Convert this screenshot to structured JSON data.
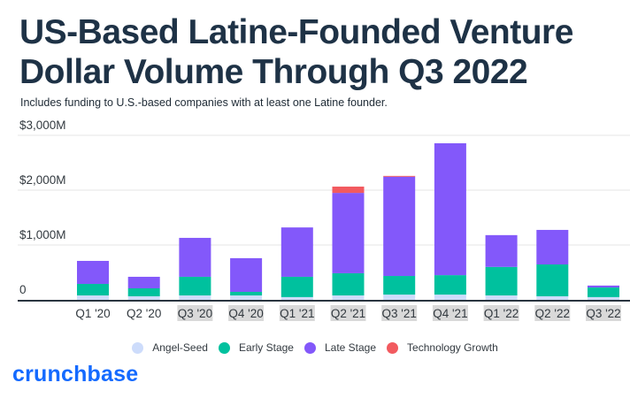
{
  "header": {
    "title": "US-Based Latine-Founded Venture Dollar Volume Through Q3 2022",
    "subtitle": "Includes funding to U.S.-based companies with at least one Latine founder."
  },
  "branding": {
    "logo_text": "crunchbase",
    "logo_color": "#146aff"
  },
  "chart_data": {
    "type": "bar",
    "stacked": true,
    "title": "US-Based Latine-Founded Venture Dollar Volume Through Q3 2022",
    "subtitle": "Includes funding to U.S.-based companies with at least one Latine founder.",
    "xlabel": "",
    "ylabel": "",
    "unit": "$M",
    "ylim": [
      0,
      3000
    ],
    "yticks": [
      0,
      1000,
      2000,
      3000
    ],
    "ytick_labels": [
      "0",
      "$1,000M",
      "$2,000M",
      "$3,000M"
    ],
    "grid": true,
    "legend_position": "bottom",
    "categories": [
      "Q1 '20",
      "Q2 '20",
      "Q3 '20",
      "Q4 '20",
      "Q1 '21",
      "Q2 '21",
      "Q3 '21",
      "Q4 '21",
      "Q1 '22",
      "Q2 '22",
      "Q3 '22"
    ],
    "highlighted_categories": [
      "Q3 '20",
      "Q4 '20",
      "Q1 '21",
      "Q2 '21",
      "Q3 '21",
      "Q4 '21",
      "Q1 '22",
      "Q2 '22",
      "Q3 '22"
    ],
    "series": [
      {
        "name": "Angel-Seed",
        "color": "#cddcfb",
        "values": [
          80,
          65,
          80,
          80,
          50,
          80,
          95,
          95,
          80,
          65,
          50
        ]
      },
      {
        "name": "Early Stage",
        "color": "#00c19e",
        "values": [
          210,
          145,
          340,
          65,
          370,
          405,
          340,
          355,
          520,
          580,
          175
        ]
      },
      {
        "name": "Late Stage",
        "color": "#8358fa",
        "values": [
          420,
          210,
          710,
          615,
          900,
          1465,
          1810,
          2405,
          580,
          630,
          35
        ]
      },
      {
        "name": "Technology Growth",
        "color": "#f25a5f",
        "values": [
          0,
          0,
          0,
          0,
          0,
          115,
          15,
          0,
          0,
          0,
          0
        ]
      }
    ]
  }
}
